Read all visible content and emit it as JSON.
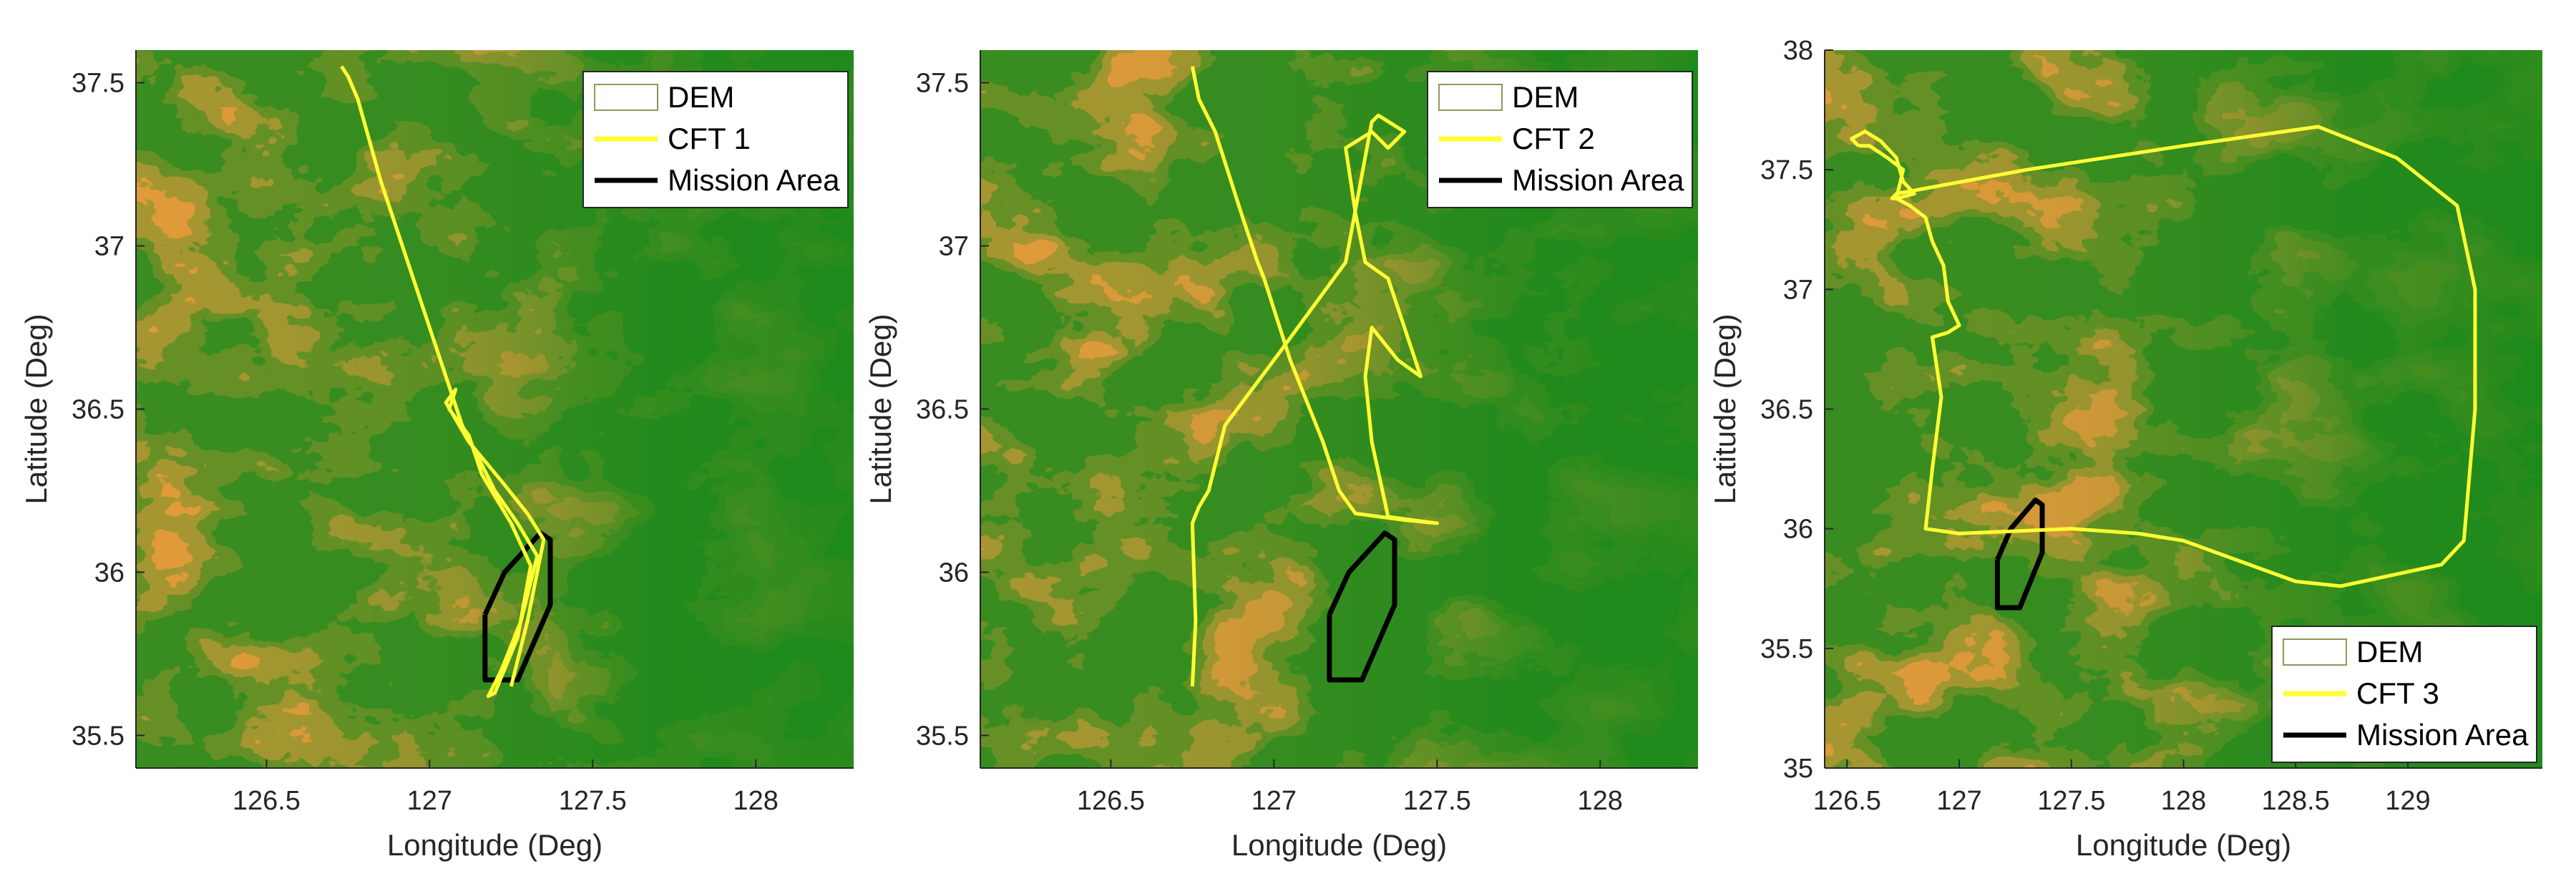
{
  "colors": {
    "dem_low": "#e09a3a",
    "dem_mid": "#c7b35a",
    "dem_high": "#1f8a1a",
    "dem_peak": "#79c03a",
    "cft_track": "#ffff33",
    "mission_area": "#000000",
    "axis": "#262626"
  },
  "chart_data": [
    {
      "type": "map-trajectory",
      "xlabel": "Longitude (Deg)",
      "ylabel": "Latitude (Deg)",
      "xlim": [
        126.1,
        128.3
      ],
      "ylim": [
        35.4,
        37.6
      ],
      "xticks": [
        126.5,
        127,
        127.5,
        128
      ],
      "xtick_labels": [
        "126.5",
        "127",
        "127.5",
        "128"
      ],
      "yticks": [
        35.5,
        36,
        36.5,
        37,
        37.5
      ],
      "ytick_labels": [
        "35.5",
        "36",
        "36.5",
        "37",
        "37.5"
      ],
      "legend": {
        "placement": "top-right",
        "entries": [
          "DEM",
          "CFT 1",
          "Mission Area"
        ]
      },
      "background": "DEM terrain elevation",
      "series": [
        {
          "name": "CFT 1",
          "x": [
            126.73,
            126.75,
            126.78,
            126.85,
            126.95,
            127.05,
            127.1,
            127.15,
            127.2,
            127.27,
            127.33,
            127.28,
            127.22,
            127.18,
            127.2,
            127.27,
            127.31,
            127.25,
            127.16,
            127.12,
            127.06,
            127.08,
            127.05,
            127.12,
            127.22,
            127.3,
            127.35,
            127.3,
            127.25
          ],
          "y": [
            37.55,
            37.52,
            37.45,
            37.2,
            36.9,
            36.6,
            36.45,
            36.35,
            36.25,
            36.15,
            36.05,
            35.85,
            35.7,
            35.62,
            35.63,
            35.8,
            36.02,
            36.15,
            36.3,
            36.42,
            36.5,
            36.56,
            36.52,
            36.4,
            36.28,
            36.18,
            36.1,
            35.85,
            35.65
          ]
        }
      ],
      "mission_area": {
        "name": "Mission Area",
        "lon": [
          127.17,
          127.23,
          127.34,
          127.37,
          127.37,
          127.27,
          127.17,
          127.17
        ],
        "lat": [
          35.87,
          36.0,
          36.12,
          36.1,
          35.9,
          35.67,
          35.67,
          35.87
        ]
      }
    },
    {
      "type": "map-trajectory",
      "xlabel": "Longitude (Deg)",
      "ylabel": "Latitude (Deg)",
      "xlim": [
        126.1,
        128.3
      ],
      "ylim": [
        35.4,
        37.6
      ],
      "xticks": [
        126.5,
        127,
        127.5,
        128
      ],
      "xtick_labels": [
        "126.5",
        "127",
        "127.5",
        "128"
      ],
      "yticks": [
        35.5,
        36,
        36.5,
        37,
        37.5
      ],
      "ytick_labels": [
        "35.5",
        "36",
        "36.5",
        "37",
        "37.5"
      ],
      "legend": {
        "placement": "top-right",
        "entries": [
          "DEM",
          "CFT 2",
          "Mission Area"
        ]
      },
      "background": "DEM terrain elevation",
      "series": [
        {
          "name": "CFT 2",
          "x": [
            126.75,
            126.77,
            126.82,
            126.9,
            126.95,
            126.97,
            127.05,
            127.15,
            127.2,
            127.25,
            127.4,
            127.5,
            127.35,
            127.3,
            127.28,
            127.3,
            127.38,
            127.45,
            127.35,
            127.28,
            127.25,
            127.22,
            127.3,
            127.35,
            127.4,
            127.32,
            127.3,
            127.22,
            127.0,
            126.85,
            126.8,
            126.77,
            126.75,
            126.76,
            126.75
          ],
          "y": [
            37.55,
            37.45,
            37.35,
            37.1,
            36.95,
            36.9,
            36.65,
            36.4,
            36.25,
            36.18,
            36.16,
            36.15,
            36.17,
            36.4,
            36.6,
            36.75,
            36.65,
            36.6,
            36.9,
            36.95,
            37.1,
            37.3,
            37.35,
            37.3,
            37.35,
            37.4,
            37.38,
            36.95,
            36.65,
            36.45,
            36.25,
            36.2,
            36.15,
            35.85,
            35.65
          ]
        }
      ],
      "mission_area": {
        "name": "Mission Area",
        "lon": [
          127.17,
          127.23,
          127.34,
          127.37,
          127.37,
          127.27,
          127.17,
          127.17
        ],
        "lat": [
          35.87,
          36.0,
          36.12,
          36.1,
          35.9,
          35.67,
          35.67,
          35.87
        ]
      }
    },
    {
      "type": "map-trajectory",
      "xlabel": "Longitude (Deg)",
      "ylabel": "Latitude (Deg)",
      "xlim": [
        126.4,
        129.6
      ],
      "ylim": [
        35,
        38
      ],
      "xticks": [
        126.5,
        127,
        127.5,
        128,
        128.5,
        129
      ],
      "xtick_labels": [
        "126.5",
        "127",
        "127.5",
        "128",
        "128.5",
        "129"
      ],
      "yticks": [
        35,
        35.5,
        36,
        36.5,
        37,
        37.5,
        38
      ],
      "ytick_labels": [
        "35",
        "35.5",
        "36",
        "36.5",
        "37",
        "37.5",
        "38"
      ],
      "legend": {
        "placement": "bottom-right",
        "entries": [
          "DEM",
          "CFT 3",
          "Mission Area"
        ]
      },
      "background": "DEM terrain elevation",
      "series": [
        {
          "name": "CFT 3",
          "x": [
            126.55,
            126.52,
            126.58,
            126.65,
            126.72,
            126.75,
            126.8,
            126.72,
            126.7,
            126.72,
            127.3,
            128.0,
            128.6,
            128.95,
            129.22,
            129.3,
            129.3,
            129.25,
            129.15,
            129.0,
            128.7,
            128.5,
            128.0,
            127.8,
            127.5,
            127.0,
            126.85,
            126.88,
            126.92,
            126.88,
            126.95,
            127.0,
            126.95,
            126.93,
            126.88,
            126.85,
            126.78,
            126.72,
            126.75,
            126.68,
            126.6,
            126.55
          ],
          "y": [
            37.6,
            37.63,
            37.66,
            37.62,
            37.55,
            37.45,
            37.4,
            37.38,
            37.38,
            37.4,
            37.5,
            37.6,
            37.68,
            37.55,
            37.35,
            37.0,
            36.5,
            35.95,
            35.85,
            35.82,
            35.76,
            35.78,
            35.95,
            35.98,
            36.0,
            35.98,
            36.0,
            36.25,
            36.55,
            36.8,
            36.82,
            36.85,
            36.95,
            37.1,
            37.2,
            37.3,
            37.35,
            37.38,
            37.5,
            37.55,
            37.6,
            37.6
          ]
        }
      ],
      "mission_area": {
        "name": "Mission Area",
        "lon": [
          127.17,
          127.23,
          127.34,
          127.37,
          127.37,
          127.27,
          127.17,
          127.17
        ],
        "lat": [
          35.87,
          36.0,
          36.12,
          36.1,
          35.9,
          35.67,
          35.67,
          35.87
        ]
      }
    }
  ]
}
